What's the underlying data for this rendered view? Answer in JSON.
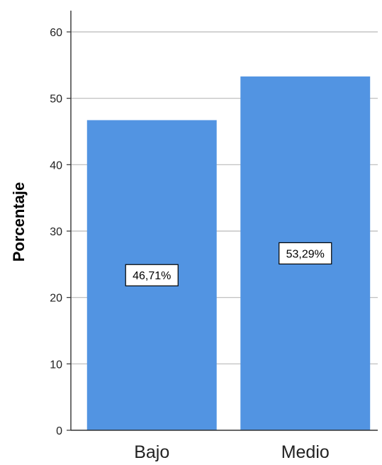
{
  "chart_data": {
    "type": "bar",
    "categories": [
      "Bajo",
      "Medio"
    ],
    "values": [
      46.71,
      53.29
    ],
    "data_labels": [
      "46,71%",
      "53,29%"
    ],
    "ylabel": "Porcentaje",
    "xlabel": "",
    "ylim": [
      0,
      60
    ],
    "yticks": [
      0,
      10,
      20,
      30,
      40,
      50,
      60
    ],
    "ytick_labels": [
      "0",
      "10",
      "20",
      "30",
      "40",
      "50",
      "60"
    ],
    "grid": true,
    "legend": false,
    "colors": {
      "bar": "#5294e2",
      "grid": "#b9b9b9",
      "axis": "#333333",
      "text": "#000000"
    }
  }
}
